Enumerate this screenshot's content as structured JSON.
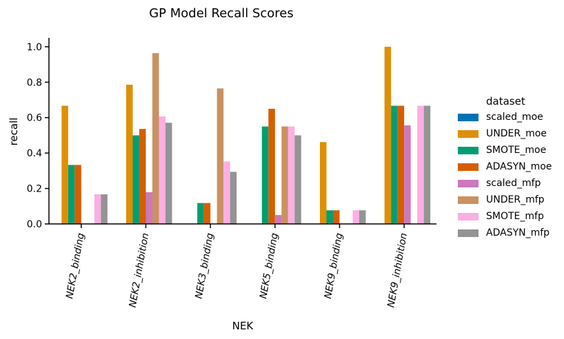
{
  "chart_data": {
    "type": "bar",
    "title": "GP Model Recall Scores",
    "xlabel": "NEK",
    "ylabel": "recall",
    "ylim": [
      0,
      1.05
    ],
    "yticks": [
      "0.0",
      "0.2",
      "0.4",
      "0.6",
      "0.8",
      "1.0"
    ],
    "grid": false,
    "legend_title": "dataset",
    "legend_placement": "right",
    "categories": [
      "NEK2_binding",
      "NEK2_inhibition",
      "NEK3_binding",
      "NEK5_binding",
      "NEK9_binding",
      "NEK9_inhibition"
    ],
    "series": [
      {
        "name": "scaled_moe",
        "color": "#0173b2",
        "values": [
          0,
          0,
          0,
          0,
          0,
          0
        ]
      },
      {
        "name": "UNDER_moe",
        "color": "#de8f05",
        "values": [
          0.667,
          0.786,
          0,
          0,
          0.462,
          1.0
        ]
      },
      {
        "name": "SMOTE_moe",
        "color": "#029e73",
        "values": [
          0.333,
          0.5,
          0.118,
          0.55,
          0.077,
          0.667
        ]
      },
      {
        "name": "ADASYN_moe",
        "color": "#d55e00",
        "values": [
          0.333,
          0.536,
          0.118,
          0.65,
          0.077,
          0.667
        ]
      },
      {
        "name": "scaled_mfp",
        "color": "#cc78bc",
        "values": [
          0,
          0.179,
          0,
          0.05,
          0,
          0.556
        ]
      },
      {
        "name": "UNDER_mfp",
        "color": "#ca9161",
        "values": [
          0,
          0.964,
          0.765,
          0.55,
          0,
          0
        ]
      },
      {
        "name": "SMOTE_mfp",
        "color": "#fbafe4",
        "values": [
          0.167,
          0.607,
          0.353,
          0.55,
          0.077,
          0.667
        ]
      },
      {
        "name": "ADASYN_mfp",
        "color": "#949494",
        "values": [
          0.167,
          0.571,
          0.294,
          0.5,
          0.077,
          0.667
        ]
      }
    ]
  }
}
